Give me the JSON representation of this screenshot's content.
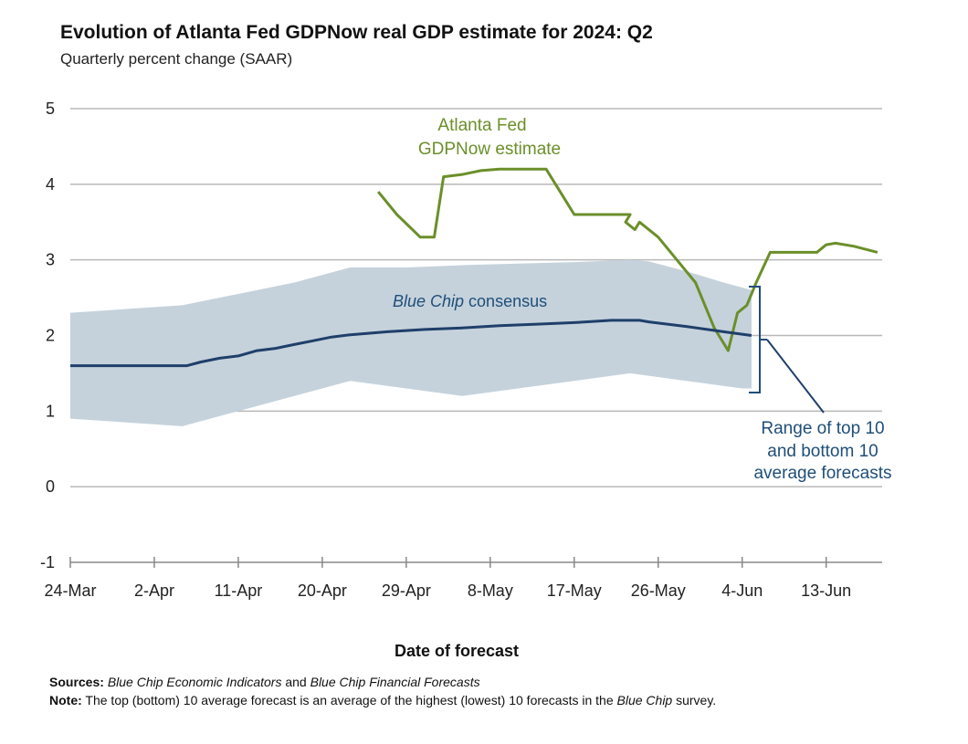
{
  "chart_data": {
    "type": "line",
    "title": "Evolution of Atlanta Fed GDPNow real GDP estimate for 2024: Q2",
    "subtitle": "Quarterly percent change (SAAR)",
    "xlabel": "Date of forecast",
    "ylabel": "",
    "ylim": [
      -1,
      5
    ],
    "yticks": [
      -1,
      0,
      1,
      2,
      3,
      4,
      5
    ],
    "grid": true,
    "x_axis": {
      "start_day": 0,
      "end_day": 87,
      "ticks": [
        {
          "day": 0,
          "label": "24-Mar"
        },
        {
          "day": 9,
          "label": "2-Apr"
        },
        {
          "day": 18,
          "label": "11-Apr"
        },
        {
          "day": 27,
          "label": "20-Apr"
        },
        {
          "day": 36,
          "label": "29-Apr"
        },
        {
          "day": 45,
          "label": "8-May"
        },
        {
          "day": 54,
          "label": "17-May"
        },
        {
          "day": 63,
          "label": "26-May"
        },
        {
          "day": 72,
          "label": "4-Jun"
        },
        {
          "day": 81,
          "label": "13-Jun"
        }
      ]
    },
    "series": [
      {
        "name": "Atlanta Fed GDPNow estimate",
        "color": "#6b8f2a",
        "points": [
          [
            33,
            3.9
          ],
          [
            35,
            3.6
          ],
          [
            37.5,
            3.3
          ],
          [
            39,
            3.3
          ],
          [
            40,
            4.1
          ],
          [
            42,
            4.13
          ],
          [
            44,
            4.18
          ],
          [
            46,
            4.2
          ],
          [
            51,
            4.2
          ],
          [
            53,
            3.8
          ],
          [
            54,
            3.6
          ],
          [
            56,
            3.6
          ],
          [
            59,
            3.6
          ],
          [
            60,
            3.6
          ],
          [
            59.5,
            3.5
          ],
          [
            60.5,
            3.4
          ],
          [
            61,
            3.5
          ],
          [
            63,
            3.3
          ],
          [
            65,
            3.0
          ],
          [
            67,
            2.7
          ],
          [
            69,
            2.1
          ],
          [
            70.5,
            1.8
          ],
          [
            71.5,
            2.3
          ],
          [
            72.5,
            2.4
          ],
          [
            73.5,
            2.7
          ],
          [
            75,
            3.1
          ],
          [
            77,
            3.1
          ],
          [
            80,
            3.1
          ],
          [
            81,
            3.2
          ],
          [
            82,
            3.22
          ],
          [
            84,
            3.18
          ],
          [
            86.5,
            3.1
          ]
        ]
      },
      {
        "name": "Blue Chip consensus",
        "color": "#1f3f6a",
        "points": [
          [
            0,
            1.6
          ],
          [
            12.5,
            1.6
          ],
          [
            14,
            1.65
          ],
          [
            16,
            1.7
          ],
          [
            18,
            1.73
          ],
          [
            20,
            1.8
          ],
          [
            22,
            1.83
          ],
          [
            24,
            1.88
          ],
          [
            26,
            1.93
          ],
          [
            28,
            1.98
          ],
          [
            30,
            2.01
          ],
          [
            34,
            2.05
          ],
          [
            38,
            2.08
          ],
          [
            42,
            2.1
          ],
          [
            46,
            2.13
          ],
          [
            50,
            2.15
          ],
          [
            54,
            2.17
          ],
          [
            58,
            2.2
          ],
          [
            61,
            2.2
          ],
          [
            62,
            2.18
          ],
          [
            66,
            2.12
          ],
          [
            70,
            2.05
          ],
          [
            73,
            2.0
          ]
        ]
      }
    ],
    "band": {
      "name": "Range of top 10 and bottom 10 average forecasts",
      "color": "#c5d2dc",
      "upper": [
        [
          0,
          2.3
        ],
        [
          6,
          2.35
        ],
        [
          12,
          2.4
        ],
        [
          18,
          2.55
        ],
        [
          24,
          2.7
        ],
        [
          30,
          2.9
        ],
        [
          36,
          2.9
        ],
        [
          42,
          2.93
        ],
        [
          48,
          2.95
        ],
        [
          54,
          2.97
        ],
        [
          60,
          3.0
        ],
        [
          62,
          2.98
        ],
        [
          66,
          2.85
        ],
        [
          70,
          2.7
        ],
        [
          73,
          2.6
        ]
      ],
      "lower": [
        [
          0,
          0.9
        ],
        [
          6,
          0.85
        ],
        [
          12,
          0.8
        ],
        [
          18,
          1.0
        ],
        [
          24,
          1.2
        ],
        [
          30,
          1.4
        ],
        [
          36,
          1.3
        ],
        [
          42,
          1.2
        ],
        [
          48,
          1.3
        ],
        [
          54,
          1.4
        ],
        [
          60,
          1.5
        ],
        [
          66,
          1.4
        ],
        [
          72,
          1.3
        ],
        [
          73,
          1.3
        ]
      ]
    },
    "annotations": {
      "gdpnow_line1": "Atlanta Fed",
      "gdpnow_line2": "GDPNow estimate",
      "bluechip_italic": "Blue Chip",
      "bluechip_rest": " consensus",
      "range_line1": "Range of top 10",
      "range_line2": "and bottom 10",
      "range_line3": "average forecasts"
    }
  },
  "footer": {
    "sources_label": "Sources:",
    "sources_italic1": "Blue Chip Economic Indicators",
    "sources_and": " and ",
    "sources_italic2": "Blue Chip Financial Forecasts",
    "note_label": "Note:",
    "note_text": " The top (bottom) 10 average forecast is an average of the highest (lowest) 10 forecasts in the ",
    "note_italic": "Blue Chip",
    "note_end": " survey."
  }
}
